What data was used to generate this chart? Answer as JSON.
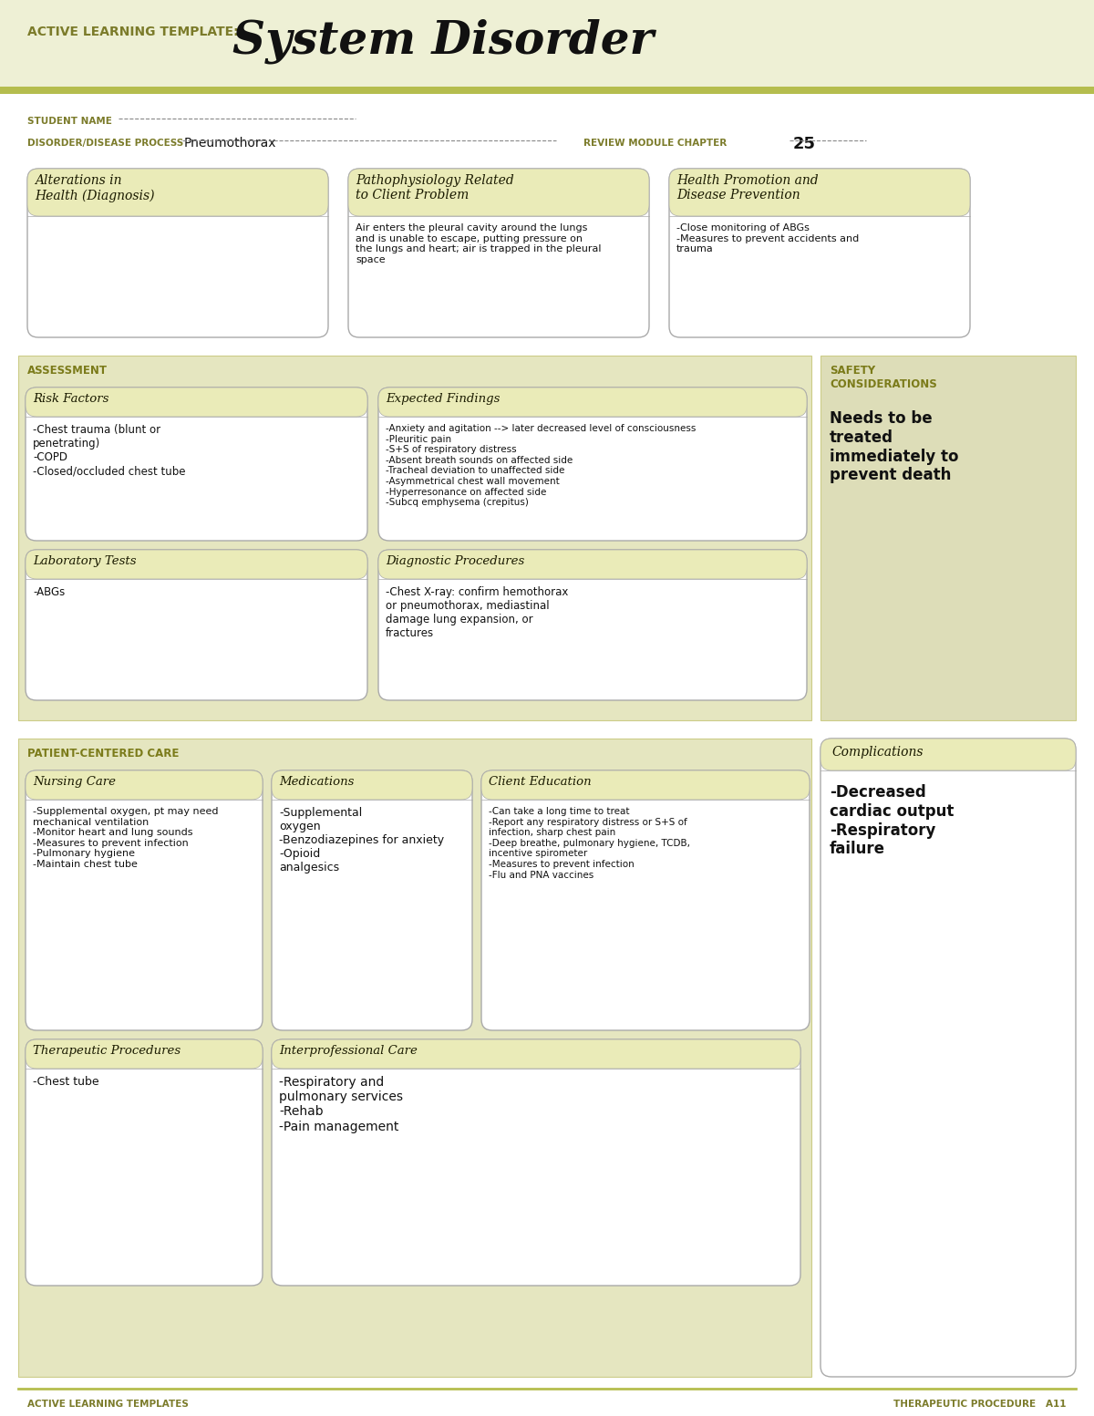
{
  "title_prefix": "ACTIVE LEARNING TEMPLATE:",
  "title_main": "System Disorder",
  "bg_header": "#eef0d5",
  "stripe_color": "#b5bd4e",
  "label_color": "#7b7b2a",
  "student_name_label": "STUDENT NAME",
  "disorder_label": "DISORDER/DISEASE PROCESS",
  "disorder_value": "Pneumothorax",
  "review_label": "REVIEW MODULE CHAPTER",
  "review_value": "25",
  "top_boxes": [
    {
      "title": "Alterations in\nHealth (Diagnosis)",
      "content": ""
    },
    {
      "title": "Pathophysiology Related\nto Client Problem",
      "content": "Air enters the pleural cavity around the lungs\nand is unable to escape, putting pressure on\nthe lungs and heart; air is trapped in the pleural\nspace"
    },
    {
      "title": "Health Promotion and\nDisease Prevention",
      "content": "-Close monitoring of ABGs\n-Measures to prevent accidents and\ntrauma"
    }
  ],
  "assessment_label": "ASSESSMENT",
  "safety_label": "SAFETY\nCONSIDERATIONS",
  "safety_content": "Needs to be\ntreated\nimmediately to\nprevent death",
  "assessment_boxes": [
    {
      "title": "Risk Factors",
      "content": "-Chest trauma (blunt or\npenetrating)\n-COPD\n-Closed/occluded chest tube"
    },
    {
      "title": "Expected Findings",
      "content": "-Anxiety and agitation --> later decreased level of consciousness\n-Pleuritic pain\n-S+S of respiratory distress\n-Absent breath sounds on affected side\n-Tracheal deviation to unaffected side\n-Asymmetrical chest wall movement\n-Hyperresonance on affected side\n-Subcq emphysema (crepitus)"
    },
    {
      "title": "Laboratory Tests",
      "content": "-ABGs"
    },
    {
      "title": "Diagnostic Procedures",
      "content": "-Chest X-ray: confirm hemothorax\nor pneumothorax, mediastinal\ndamage lung expansion, or\nfractures"
    }
  ],
  "patient_care_label": "PATIENT-CENTERED CARE",
  "complications_label": "Complications",
  "complications_content": "-Decreased\ncardiac output\n-Respiratory\nfailure",
  "patient_boxes": [
    {
      "title": "Nursing Care",
      "content": "-Supplemental oxygen, pt may need\nmechanical ventilation\n-Monitor heart and lung sounds\n-Measures to prevent infection\n-Pulmonary hygiene\n-Maintain chest tube"
    },
    {
      "title": "Medications",
      "content": "-Supplemental\noxygen\n-Benzodiazepines for anxiety\n-Opioid\nanalgesics"
    },
    {
      "title": "Client Education",
      "content": "-Can take a long time to treat\n-Report any respiratory distress or S+S of\ninfection, sharp chest pain\n-Deep breathe, pulmonary hygiene, TCDB,\nincentive spirometer\n-Measures to prevent infection\n-Flu and PNA vaccines"
    },
    {
      "title": "Therapeutic Procedures",
      "content": "-Chest tube"
    },
    {
      "title": "Interprofessional Care",
      "content": "-Respiratory and\npulmonary services\n-Rehab\n-Pain management"
    }
  ],
  "footer_left": "ACTIVE LEARNING TEMPLATES",
  "footer_right": "THERAPEUTIC PROCEDURE   A11"
}
